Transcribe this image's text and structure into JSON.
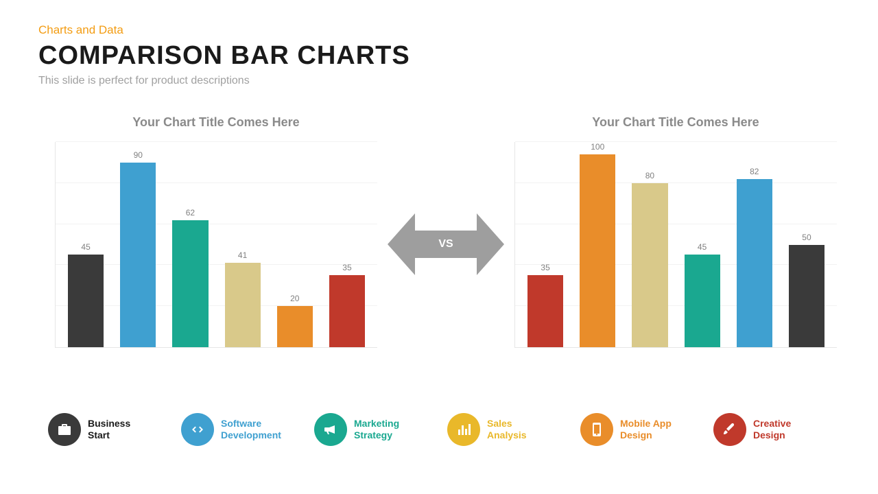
{
  "header": {
    "eyebrow": "Charts and Data",
    "title": "COMPARISON BAR CHARTS",
    "subtitle": "This slide is perfect for product descriptions",
    "eyebrow_color": "#f39c12",
    "title_color": "#1a1a1a",
    "subtitle_color": "#a0a0a0"
  },
  "vs": {
    "label": "VS",
    "arrow_fill": "#9e9e9e"
  },
  "chart_left": {
    "type": "bar",
    "title": "Your Chart Title Comes Here",
    "title_color": "#8a8a8a",
    "title_fontsize": 18,
    "ylim": [
      0,
      100
    ],
    "gridline_color": "#f2f2f2",
    "axis_color": "#e6e6e6",
    "value_label_color": "#808080",
    "value_label_fontsize": 12,
    "bars": [
      {
        "value": 45,
        "color": "#3a3a3a"
      },
      {
        "value": 90,
        "color": "#3fa0d0"
      },
      {
        "value": 62,
        "color": "#1aa890"
      },
      {
        "value": 41,
        "color": "#d9c98a"
      },
      {
        "value": 20,
        "color": "#e98d2a"
      },
      {
        "value": 35,
        "color": "#c0392b"
      }
    ]
  },
  "chart_right": {
    "type": "bar",
    "title": "Your Chart Title Comes Here",
    "title_color": "#8a8a8a",
    "title_fontsize": 18,
    "ylim": [
      0,
      100
    ],
    "gridline_color": "#f2f2f2",
    "axis_color": "#e6e6e6",
    "value_label_color": "#808080",
    "value_label_fontsize": 12,
    "bars": [
      {
        "value": 35,
        "color": "#c0392b"
      },
      {
        "value": 100,
        "color": "#e98d2a"
      },
      {
        "value": 80,
        "color": "#d9c98a"
      },
      {
        "value": 45,
        "color": "#1aa890"
      },
      {
        "value": 82,
        "color": "#3fa0d0"
      },
      {
        "value": 50,
        "color": "#3a3a3a"
      }
    ]
  },
  "legend": {
    "items": [
      {
        "label_line1": "Business",
        "label_line2": "Start",
        "text_color": "#1a1a1a",
        "circle_color": "#3a3a3a",
        "icon": "briefcase"
      },
      {
        "label_line1": "Software",
        "label_line2": "Development",
        "text_color": "#3fa0d0",
        "circle_color": "#3fa0d0",
        "icon": "code"
      },
      {
        "label_line1": "Marketing",
        "label_line2": "Strategy",
        "text_color": "#1aa890",
        "circle_color": "#1aa890",
        "icon": "megaphone"
      },
      {
        "label_line1": "Sales",
        "label_line2": "Analysis",
        "text_color": "#e9b82a",
        "circle_color": "#e9b82a",
        "icon": "bars"
      },
      {
        "label_line1": "Mobile App",
        "label_line2": "Design",
        "text_color": "#e98d2a",
        "circle_color": "#e98d2a",
        "icon": "mobile"
      },
      {
        "label_line1": "Creative",
        "label_line2": "Design",
        "text_color": "#c0392b",
        "circle_color": "#c0392b",
        "icon": "brush"
      }
    ]
  }
}
